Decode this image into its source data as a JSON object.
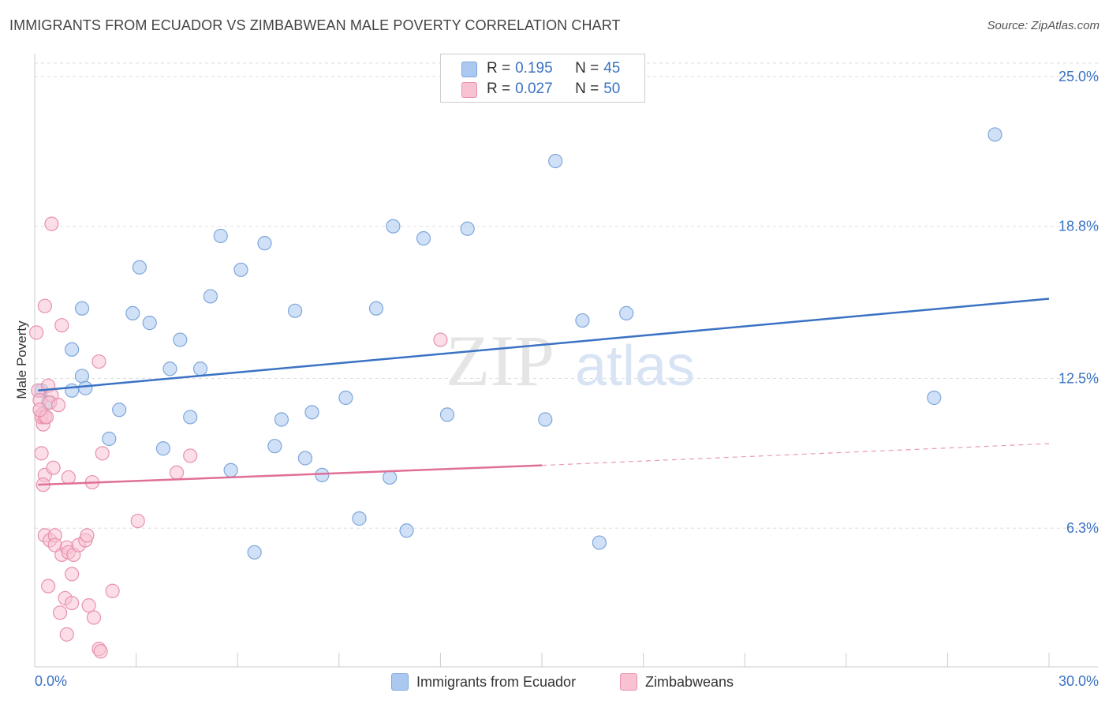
{
  "title": "IMMIGRANTS FROM ECUADOR VS ZIMBABWEAN MALE POVERTY CORRELATION CHART",
  "source": "Source: ZipAtlas.com",
  "watermark": {
    "zip": "ZIP",
    "atlas": "atlas"
  },
  "legend_top": [
    {
      "r_label": "R =",
      "r_value": "0.195",
      "n_label": "N =",
      "n_value": "45",
      "color": "#aac8f0",
      "border": "#7ea6dc"
    },
    {
      "r_label": "R =",
      "r_value": "0.027",
      "n_label": "N =",
      "n_value": "50",
      "color": "#f8c2d3",
      "border": "#e891ad"
    }
  ],
  "legend_bottom": [
    {
      "label": "Immigrants from Ecuador",
      "color": "#aac8f0",
      "border": "#7ea6dc"
    },
    {
      "label": "Zimbabweans",
      "color": "#f8c2d3",
      "border": "#e891ad"
    }
  ],
  "chart_data": {
    "type": "scatter",
    "title": "IMMIGRANTS FROM ECUADOR VS ZIMBABWEAN MALE POVERTY CORRELATION CHART",
    "xlabel": "",
    "ylabel": "Male Poverty",
    "xlim": [
      0,
      30
    ],
    "ylim": [
      0,
      25.0
    ],
    "x_tick_labels": [
      "0.0%",
      "30.0%"
    ],
    "y_ticks": [
      6.3,
      12.5,
      18.8,
      25.0
    ],
    "y_tick_labels": [
      "6.3%",
      "12.5%",
      "18.8%",
      "25.0%"
    ],
    "grid": true,
    "colors": {
      "ecuador_fill": "#aac8f0",
      "ecuador_stroke": "#7ea6dc",
      "ecuador_line": "#3a72c4",
      "zim_fill": "#f8c2d3",
      "zim_stroke": "#e891ad",
      "zim_line": "#e06f98",
      "tick_label": "#3a72c4"
    },
    "series": [
      {
        "name": "Immigrants from Ecuador",
        "trend": {
          "x": [
            0.1,
            30.0
          ],
          "y": [
            12.0,
            15.8
          ],
          "dashed_from": null
        },
        "points": [
          [
            0.4,
            11.5
          ],
          [
            1.1,
            13.7
          ],
          [
            1.4,
            12.6
          ],
          [
            1.5,
            12.1
          ],
          [
            1.4,
            15.4
          ],
          [
            1.1,
            12.0
          ],
          [
            2.2,
            10.0
          ],
          [
            2.5,
            11.2
          ],
          [
            3.1,
            17.1
          ],
          [
            2.9,
            15.2
          ],
          [
            3.4,
            14.8
          ],
          [
            3.8,
            9.6
          ],
          [
            4.0,
            12.9
          ],
          [
            4.3,
            14.1
          ],
          [
            4.6,
            10.9
          ],
          [
            4.9,
            12.9
          ],
          [
            5.2,
            15.9
          ],
          [
            5.5,
            18.4
          ],
          [
            5.8,
            8.7
          ],
          [
            6.1,
            17.0
          ],
          [
            6.5,
            5.3
          ],
          [
            6.8,
            18.1
          ],
          [
            7.1,
            9.7
          ],
          [
            7.3,
            10.8
          ],
          [
            7.7,
            15.3
          ],
          [
            8.0,
            9.2
          ],
          [
            8.2,
            11.1
          ],
          [
            8.5,
            8.5
          ],
          [
            9.2,
            11.7
          ],
          [
            9.6,
            6.7
          ],
          [
            10.1,
            15.4
          ],
          [
            10.5,
            8.4
          ],
          [
            10.6,
            18.8
          ],
          [
            11.0,
            6.2
          ],
          [
            11.5,
            18.3
          ],
          [
            12.2,
            11.0
          ],
          [
            12.8,
            18.7
          ],
          [
            15.1,
            10.8
          ],
          [
            15.4,
            21.5
          ],
          [
            16.2,
            14.9
          ],
          [
            16.7,
            5.7
          ],
          [
            17.5,
            15.2
          ],
          [
            26.6,
            11.7
          ],
          [
            28.4,
            22.6
          ],
          [
            0.2,
            12.0
          ]
        ]
      },
      {
        "name": "Zimbabweans",
        "trend": {
          "x": [
            0.1,
            15.0,
            30.0
          ],
          "y": [
            8.1,
            8.9,
            9.8
          ],
          "dashed_from": 15.0
        },
        "points": [
          [
            0.05,
            14.4
          ],
          [
            0.1,
            12.0
          ],
          [
            0.15,
            11.6
          ],
          [
            0.2,
            11.0
          ],
          [
            0.25,
            10.6
          ],
          [
            0.2,
            10.9
          ],
          [
            0.3,
            10.9
          ],
          [
            0.35,
            10.9
          ],
          [
            0.4,
            12.2
          ],
          [
            0.5,
            11.8
          ],
          [
            0.45,
            11.5
          ],
          [
            0.7,
            11.4
          ],
          [
            0.3,
            15.5
          ],
          [
            0.8,
            14.7
          ],
          [
            0.5,
            18.9
          ],
          [
            0.2,
            9.4
          ],
          [
            0.3,
            8.5
          ],
          [
            0.25,
            8.1
          ],
          [
            0.55,
            8.8
          ],
          [
            1.0,
            8.4
          ],
          [
            1.7,
            8.2
          ],
          [
            1.9,
            13.2
          ],
          [
            2.0,
            9.4
          ],
          [
            0.3,
            6.0
          ],
          [
            0.45,
            5.8
          ],
          [
            0.6,
            6.0
          ],
          [
            0.6,
            5.6
          ],
          [
            0.8,
            5.2
          ],
          [
            0.95,
            5.5
          ],
          [
            1.0,
            5.3
          ],
          [
            1.15,
            5.2
          ],
          [
            1.3,
            5.6
          ],
          [
            1.5,
            5.8
          ],
          [
            1.55,
            6.0
          ],
          [
            1.1,
            4.4
          ],
          [
            0.4,
            3.9
          ],
          [
            0.75,
            2.8
          ],
          [
            0.9,
            3.4
          ],
          [
            1.1,
            3.2
          ],
          [
            1.6,
            3.1
          ],
          [
            1.75,
            2.6
          ],
          [
            2.3,
            3.7
          ],
          [
            0.95,
            1.9
          ],
          [
            1.9,
            1.3
          ],
          [
            1.95,
            1.2
          ],
          [
            3.05,
            6.6
          ],
          [
            4.2,
            8.6
          ],
          [
            4.6,
            9.3
          ],
          [
            12.0,
            14.1
          ],
          [
            0.15,
            11.2
          ]
        ]
      }
    ]
  }
}
